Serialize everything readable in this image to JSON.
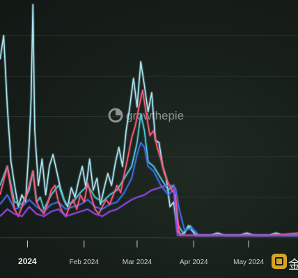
{
  "watermark": {
    "text": "growthepie",
    "icon": "pie-logo-icon"
  },
  "corner_badge": {
    "icon": "jinse-logo-icon",
    "text": "金"
  },
  "colors": {
    "background": "#151b17",
    "grid": "#2c3530",
    "axis_tick": "#d2d8d4"
  },
  "chart_data": {
    "type": "line",
    "x_axis": {
      "type": "date",
      "ticks": [
        "2024",
        "Feb 2024",
        "Mar 2024",
        "Apr 2024",
        "May 2024"
      ],
      "range": [
        "2023-12-17",
        "2024-05-28"
      ]
    },
    "y_axis": {
      "range": [
        0,
        100
      ],
      "gridlines": [
        0,
        17,
        34,
        51,
        68,
        85
      ],
      "labels_visible": false
    },
    "grid": true,
    "legend": "none",
    "series": [
      {
        "color": "#a9e4f2",
        "points": [
          [
            "2023-12-17",
            75
          ],
          [
            "2023-12-19",
            85
          ],
          [
            "2023-12-21",
            55
          ],
          [
            "2023-12-23",
            32
          ],
          [
            "2023-12-25",
            22
          ],
          [
            "2023-12-27",
            13
          ],
          [
            "2023-12-29",
            18
          ],
          [
            "2023-12-31",
            15
          ],
          [
            "2024-01-02",
            40
          ],
          [
            "2024-01-03",
            58
          ],
          [
            "2024-01-04",
            98
          ],
          [
            "2024-01-05",
            45
          ],
          [
            "2024-01-07",
            22
          ],
          [
            "2024-01-09",
            33
          ],
          [
            "2024-01-11",
            18
          ],
          [
            "2024-01-13",
            30
          ],
          [
            "2024-01-15",
            35
          ],
          [
            "2024-01-17",
            28
          ],
          [
            "2024-01-19",
            21
          ],
          [
            "2024-01-21",
            16
          ],
          [
            "2024-01-23",
            13
          ],
          [
            "2024-01-25",
            21
          ],
          [
            "2024-01-27",
            17
          ],
          [
            "2024-01-29",
            24
          ],
          [
            "2024-01-31",
            30
          ],
          [
            "2024-02-02",
            21
          ],
          [
            "2024-02-04",
            33
          ],
          [
            "2024-02-06",
            20
          ],
          [
            "2024-02-08",
            25
          ],
          [
            "2024-02-10",
            14
          ],
          [
            "2024-02-12",
            21
          ],
          [
            "2024-02-14",
            27
          ],
          [
            "2024-02-16",
            22
          ],
          [
            "2024-02-18",
            31
          ],
          [
            "2024-02-20",
            38
          ],
          [
            "2024-02-22",
            30
          ],
          [
            "2024-02-24",
            45
          ],
          [
            "2024-02-26",
            55
          ],
          [
            "2024-02-28",
            67
          ],
          [
            "2024-03-01",
            55
          ],
          [
            "2024-03-03",
            74
          ],
          [
            "2024-03-05",
            64
          ],
          [
            "2024-03-07",
            53
          ],
          [
            "2024-03-09",
            61
          ],
          [
            "2024-03-11",
            41
          ],
          [
            "2024-03-13",
            40
          ],
          [
            "2024-03-15",
            30
          ],
          [
            "2024-03-17",
            25
          ],
          [
            "2024-03-19",
            13
          ],
          [
            "2024-03-21",
            15
          ],
          [
            "2024-03-23",
            3
          ],
          [
            "2024-03-25",
            1
          ],
          [
            "2024-03-27",
            2
          ],
          [
            "2024-03-29",
            5
          ],
          [
            "2024-03-31",
            3
          ],
          [
            "2024-04-02",
            1
          ],
          [
            "2024-04-06",
            1
          ],
          [
            "2024-04-10",
            1
          ],
          [
            "2024-04-14",
            2
          ],
          [
            "2024-04-18",
            1
          ],
          [
            "2024-04-22",
            1
          ],
          [
            "2024-04-26",
            1
          ],
          [
            "2024-04-30",
            2
          ],
          [
            "2024-05-04",
            1
          ],
          [
            "2024-05-08",
            1
          ],
          [
            "2024-05-12",
            1
          ],
          [
            "2024-05-16",
            2
          ],
          [
            "2024-05-20",
            1
          ],
          [
            "2024-05-24",
            1
          ],
          [
            "2024-05-28",
            1
          ]
        ]
      },
      {
        "color": "#4fc7d8",
        "points": [
          [
            "2023-12-17",
            22
          ],
          [
            "2023-12-21",
            30
          ],
          [
            "2023-12-25",
            15
          ],
          [
            "2023-12-29",
            14
          ],
          [
            "2024-01-02",
            20
          ],
          [
            "2024-01-04",
            28
          ],
          [
            "2024-01-06",
            15
          ],
          [
            "2024-01-08",
            17
          ],
          [
            "2024-01-10",
            12
          ],
          [
            "2024-01-14",
            18
          ],
          [
            "2024-01-18",
            22
          ],
          [
            "2024-01-22",
            14
          ],
          [
            "2024-01-26",
            15
          ],
          [
            "2024-01-30",
            19
          ],
          [
            "2024-02-03",
            22
          ],
          [
            "2024-02-07",
            17
          ],
          [
            "2024-02-11",
            15
          ],
          [
            "2024-02-15",
            18
          ],
          [
            "2024-02-19",
            20
          ],
          [
            "2024-02-23",
            25
          ],
          [
            "2024-02-27",
            30
          ],
          [
            "2024-03-01",
            40
          ],
          [
            "2024-03-03",
            52
          ],
          [
            "2024-03-05",
            45
          ],
          [
            "2024-03-07",
            32
          ],
          [
            "2024-03-10",
            30
          ],
          [
            "2024-03-14",
            25
          ],
          [
            "2024-03-18",
            20
          ],
          [
            "2024-03-21",
            22
          ],
          [
            "2024-03-23",
            6
          ],
          [
            "2024-03-26",
            2
          ],
          [
            "2024-03-30",
            5
          ],
          [
            "2024-04-03",
            1
          ],
          [
            "2024-04-10",
            1
          ],
          [
            "2024-04-20",
            1
          ],
          [
            "2024-05-01",
            1
          ],
          [
            "2024-05-15",
            1
          ],
          [
            "2024-05-28",
            1
          ]
        ]
      },
      {
        "color": "#3f6ff2",
        "points": [
          [
            "2023-12-17",
            14
          ],
          [
            "2023-12-21",
            18
          ],
          [
            "2023-12-25",
            12
          ],
          [
            "2023-12-29",
            13
          ],
          [
            "2024-01-02",
            16
          ],
          [
            "2024-01-06",
            13
          ],
          [
            "2024-01-10",
            11
          ],
          [
            "2024-01-14",
            14
          ],
          [
            "2024-01-18",
            15
          ],
          [
            "2024-01-22",
            12
          ],
          [
            "2024-01-26",
            13
          ],
          [
            "2024-01-30",
            14
          ],
          [
            "2024-02-03",
            16
          ],
          [
            "2024-02-07",
            13
          ],
          [
            "2024-02-11",
            12
          ],
          [
            "2024-02-15",
            14
          ],
          [
            "2024-02-19",
            15
          ],
          [
            "2024-02-23",
            19
          ],
          [
            "2024-02-27",
            25
          ],
          [
            "2024-03-01",
            35
          ],
          [
            "2024-03-03",
            40
          ],
          [
            "2024-03-05",
            38
          ],
          [
            "2024-03-07",
            30
          ],
          [
            "2024-03-10",
            28
          ],
          [
            "2024-03-14",
            22
          ],
          [
            "2024-03-18",
            18
          ],
          [
            "2024-03-22",
            21
          ],
          [
            "2024-03-24",
            12
          ],
          [
            "2024-03-27",
            3
          ],
          [
            "2024-03-31",
            4
          ],
          [
            "2024-04-04",
            1
          ],
          [
            "2024-04-15",
            1
          ],
          [
            "2024-05-01",
            1
          ],
          [
            "2024-05-28",
            1
          ]
        ]
      },
      {
        "color": "#ff5a7a",
        "points": [
          [
            "2023-12-17",
            18
          ],
          [
            "2023-12-19",
            24
          ],
          [
            "2023-12-21",
            30
          ],
          [
            "2023-12-23",
            20
          ],
          [
            "2023-12-25",
            12
          ],
          [
            "2023-12-27",
            9
          ],
          [
            "2023-12-29",
            13
          ],
          [
            "2023-12-31",
            17
          ],
          [
            "2024-01-02",
            22
          ],
          [
            "2024-01-04",
            28
          ],
          [
            "2024-01-06",
            15
          ],
          [
            "2024-01-08",
            12
          ],
          [
            "2024-01-10",
            10
          ],
          [
            "2024-01-12",
            14
          ],
          [
            "2024-01-14",
            20
          ],
          [
            "2024-01-16",
            22
          ],
          [
            "2024-01-18",
            15
          ],
          [
            "2024-01-20",
            11
          ],
          [
            "2024-01-22",
            9
          ],
          [
            "2024-01-24",
            13
          ],
          [
            "2024-01-26",
            16
          ],
          [
            "2024-01-28",
            12
          ],
          [
            "2024-01-30",
            18
          ],
          [
            "2024-02-01",
            15
          ],
          [
            "2024-02-03",
            23
          ],
          [
            "2024-02-05",
            17
          ],
          [
            "2024-02-07",
            12
          ],
          [
            "2024-02-09",
            10
          ],
          [
            "2024-02-11",
            13
          ],
          [
            "2024-02-13",
            16
          ],
          [
            "2024-02-15",
            14
          ],
          [
            "2024-02-17",
            18
          ],
          [
            "2024-02-19",
            22
          ],
          [
            "2024-02-21",
            19
          ],
          [
            "2024-02-23",
            27
          ],
          [
            "2024-02-25",
            34
          ],
          [
            "2024-02-27",
            42
          ],
          [
            "2024-02-29",
            47
          ],
          [
            "2024-03-02",
            55
          ],
          [
            "2024-03-04",
            62
          ],
          [
            "2024-03-06",
            52
          ],
          [
            "2024-03-08",
            43
          ],
          [
            "2024-03-10",
            45
          ],
          [
            "2024-03-12",
            38
          ],
          [
            "2024-03-14",
            33
          ],
          [
            "2024-03-16",
            27
          ],
          [
            "2024-03-18",
            23
          ],
          [
            "2024-03-20",
            20
          ],
          [
            "2024-03-22",
            18
          ],
          [
            "2024-03-24",
            2
          ],
          [
            "2024-03-26",
            1
          ],
          [
            "2024-04-01",
            1
          ],
          [
            "2024-04-10",
            1
          ],
          [
            "2024-04-20",
            1
          ],
          [
            "2024-05-01",
            1
          ],
          [
            "2024-05-15",
            1
          ],
          [
            "2024-05-28",
            2
          ]
        ]
      },
      {
        "color": "#9747f2",
        "points": [
          [
            "2023-12-17",
            9
          ],
          [
            "2023-12-21",
            12
          ],
          [
            "2023-12-25",
            10
          ],
          [
            "2023-12-29",
            9
          ],
          [
            "2024-01-02",
            13
          ],
          [
            "2024-01-06",
            10
          ],
          [
            "2024-01-10",
            9
          ],
          [
            "2024-01-14",
            11
          ],
          [
            "2024-01-18",
            12
          ],
          [
            "2024-01-22",
            9
          ],
          [
            "2024-01-26",
            10
          ],
          [
            "2024-01-30",
            11
          ],
          [
            "2024-02-03",
            12
          ],
          [
            "2024-02-07",
            10
          ],
          [
            "2024-02-11",
            9
          ],
          [
            "2024-02-15",
            11
          ],
          [
            "2024-02-19",
            12
          ],
          [
            "2024-02-23",
            14
          ],
          [
            "2024-02-27",
            16
          ],
          [
            "2024-03-01",
            17
          ],
          [
            "2024-03-05",
            18
          ],
          [
            "2024-03-09",
            20
          ],
          [
            "2024-03-13",
            21
          ],
          [
            "2024-03-17",
            22
          ],
          [
            "2024-03-21",
            22
          ],
          [
            "2024-03-23",
            1
          ],
          [
            "2024-03-28",
            1
          ],
          [
            "2024-04-10",
            1
          ],
          [
            "2024-05-01",
            1
          ],
          [
            "2024-05-28",
            1
          ]
        ]
      }
    ]
  }
}
